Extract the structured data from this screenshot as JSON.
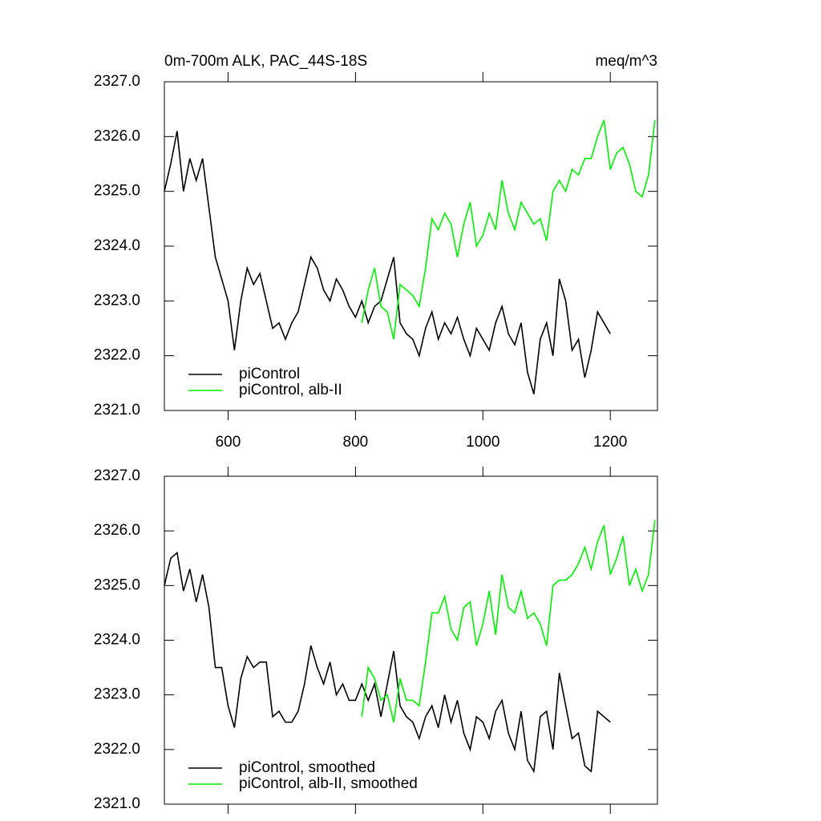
{
  "chart_data": [
    {
      "type": "line",
      "title": "0m-700m ALK, PAC_44S-18S",
      "units": "meq/m^3",
      "xlim": [
        500,
        1274
      ],
      "xticks": [
        600,
        800,
        1000,
        1200
      ],
      "xtick_labels": true,
      "ylim": [
        2321,
        2327
      ],
      "yticks": [
        {
          "value": 2321,
          "label": "2321.0"
        },
        {
          "value": 2322,
          "label": "2322.0"
        },
        {
          "value": 2323,
          "label": "2323.0"
        },
        {
          "value": 2324,
          "label": "2324.0"
        },
        {
          "value": 2325,
          "label": "2325.0"
        },
        {
          "value": 2326,
          "label": "2326.0"
        },
        {
          "value": 2327,
          "label": "2327.0"
        }
      ],
      "legend": "lower left",
      "series": [
        {
          "name": "piControl",
          "color": "#000000",
          "x": [
            500,
            510,
            520,
            530,
            540,
            550,
            560,
            570,
            580,
            590,
            600,
            610,
            620,
            630,
            640,
            650,
            660,
            670,
            680,
            690,
            700,
            710,
            720,
            730,
            740,
            750,
            760,
            770,
            780,
            790,
            800,
            810,
            820,
            830,
            840,
            850,
            860,
            870,
            880,
            890,
            900,
            910,
            920,
            930,
            940,
            950,
            960,
            970,
            980,
            990,
            1000,
            1010,
            1020,
            1030,
            1040,
            1050,
            1060,
            1070,
            1080,
            1090,
            1100,
            1110,
            1120,
            1130,
            1140,
            1150,
            1160,
            1170,
            1180,
            1190,
            1200
          ],
          "values": [
            2325.0,
            2325.5,
            2326.1,
            2325.0,
            2325.6,
            2325.2,
            2325.6,
            2324.7,
            2323.8,
            2323.4,
            2323.0,
            2322.1,
            2323.0,
            2323.6,
            2323.3,
            2323.5,
            2323.0,
            2322.5,
            2322.6,
            2322.3,
            2322.6,
            2322.8,
            2323.3,
            2323.8,
            2323.6,
            2323.2,
            2323.0,
            2323.4,
            2323.2,
            2322.9,
            2322.7,
            2323.0,
            2322.6,
            2322.9,
            2323.0,
            2323.4,
            2323.8,
            2322.6,
            2322.4,
            2322.3,
            2322.0,
            2322.5,
            2322.8,
            2322.3,
            2322.6,
            2322.4,
            2322.7,
            2322.3,
            2322.0,
            2322.5,
            2322.3,
            2322.1,
            2322.6,
            2322.9,
            2322.4,
            2322.2,
            2322.6,
            2321.7,
            2321.3,
            2322.3,
            2322.6,
            2322.0,
            2323.4,
            2323.0,
            2322.1,
            2322.3,
            2321.6,
            2322.1,
            2322.8,
            2322.6,
            2322.4
          ]
        },
        {
          "name": "piControl, alb-II",
          "color": "#00ee00",
          "x": [
            810,
            820,
            830,
            840,
            850,
            860,
            870,
            880,
            890,
            900,
            910,
            920,
            930,
            940,
            950,
            960,
            970,
            980,
            990,
            1000,
            1010,
            1020,
            1030,
            1040,
            1050,
            1060,
            1070,
            1080,
            1090,
            1100,
            1110,
            1120,
            1130,
            1140,
            1150,
            1160,
            1170,
            1180,
            1190,
            1200,
            1210,
            1220,
            1230,
            1240,
            1250,
            1260,
            1270
          ],
          "values": [
            2322.6,
            2323.2,
            2323.6,
            2322.9,
            2322.8,
            2322.3,
            2323.3,
            2323.2,
            2323.1,
            2322.9,
            2323.6,
            2324.5,
            2324.3,
            2324.6,
            2324.4,
            2323.8,
            2324.4,
            2324.8,
            2324.0,
            2324.2,
            2324.6,
            2324.3,
            2325.2,
            2324.6,
            2324.3,
            2324.8,
            2324.6,
            2324.4,
            2324.5,
            2324.1,
            2325.0,
            2325.2,
            2325.0,
            2325.4,
            2325.3,
            2325.6,
            2325.6,
            2326.0,
            2326.3,
            2325.4,
            2325.7,
            2325.8,
            2325.5,
            2325.0,
            2324.9,
            2325.3,
            2326.3
          ]
        }
      ]
    },
    {
      "type": "line",
      "xlim": [
        500,
        1274
      ],
      "xticks": [
        600,
        800,
        1000,
        1200
      ],
      "xtick_labels": false,
      "ylim": [
        2321,
        2327
      ],
      "yticks": [
        {
          "value": 2321,
          "label": "2321.0"
        },
        {
          "value": 2322,
          "label": "2322.0"
        },
        {
          "value": 2323,
          "label": "2323.0"
        },
        {
          "value": 2324,
          "label": "2324.0"
        },
        {
          "value": 2325,
          "label": "2325.0"
        },
        {
          "value": 2326,
          "label": "2326.0"
        },
        {
          "value": 2327,
          "label": "2327.0"
        }
      ],
      "legend": "lower left",
      "series": [
        {
          "name": "piControl, smoothed",
          "color": "#000000",
          "x": [
            500,
            510,
            520,
            530,
            540,
            550,
            560,
            570,
            580,
            590,
            600,
            610,
            620,
            630,
            640,
            650,
            660,
            670,
            680,
            690,
            700,
            710,
            720,
            730,
            740,
            750,
            760,
            770,
            780,
            790,
            800,
            810,
            820,
            830,
            840,
            850,
            860,
            870,
            880,
            890,
            900,
            910,
            920,
            930,
            940,
            950,
            960,
            970,
            980,
            990,
            1000,
            1010,
            1020,
            1030,
            1040,
            1050,
            1060,
            1070,
            1080,
            1090,
            1100,
            1110,
            1120,
            1130,
            1140,
            1150,
            1160,
            1170,
            1180,
            1190,
            1200
          ],
          "values": [
            2325.0,
            2325.5,
            2325.6,
            2324.9,
            2325.3,
            2324.7,
            2325.2,
            2324.6,
            2323.5,
            2323.5,
            2322.8,
            2322.4,
            2323.3,
            2323.7,
            2323.5,
            2323.6,
            2323.6,
            2322.6,
            2322.7,
            2322.5,
            2322.5,
            2322.7,
            2323.2,
            2323.9,
            2323.5,
            2323.2,
            2323.6,
            2323.0,
            2323.2,
            2322.9,
            2322.9,
            2323.2,
            2322.9,
            2323.2,
            2322.6,
            2323.2,
            2323.8,
            2322.8,
            2322.6,
            2322.5,
            2322.2,
            2322.6,
            2322.8,
            2322.4,
            2323.0,
            2322.5,
            2322.9,
            2322.3,
            2322.0,
            2322.6,
            2322.5,
            2322.2,
            2322.7,
            2322.9,
            2322.3,
            2322.0,
            2322.7,
            2321.8,
            2321.6,
            2322.6,
            2322.7,
            2322.0,
            2323.4,
            2322.8,
            2322.2,
            2322.3,
            2321.7,
            2321.6,
            2322.7,
            2322.6,
            2322.5
          ]
        },
        {
          "name": "piControl, alb-II, smoothed",
          "color": "#00ee00",
          "x": [
            810,
            820,
            830,
            840,
            850,
            860,
            870,
            880,
            890,
            900,
            910,
            920,
            930,
            940,
            950,
            960,
            970,
            980,
            990,
            1000,
            1010,
            1020,
            1030,
            1040,
            1050,
            1060,
            1070,
            1080,
            1090,
            1100,
            1110,
            1120,
            1130,
            1140,
            1150,
            1160,
            1170,
            1180,
            1190,
            1200,
            1210,
            1220,
            1230,
            1240,
            1250,
            1260,
            1270
          ],
          "values": [
            2322.6,
            2323.5,
            2323.3,
            2322.9,
            2323.0,
            2322.5,
            2323.3,
            2322.9,
            2322.9,
            2322.8,
            2323.6,
            2324.5,
            2324.5,
            2324.8,
            2324.2,
            2324.0,
            2324.6,
            2324.7,
            2323.9,
            2324.3,
            2324.9,
            2324.1,
            2325.2,
            2324.6,
            2324.5,
            2324.9,
            2324.4,
            2324.5,
            2324.3,
            2323.9,
            2325.0,
            2325.1,
            2325.1,
            2325.2,
            2325.4,
            2325.7,
            2325.3,
            2325.8,
            2326.1,
            2325.2,
            2325.5,
            2325.9,
            2325.0,
            2325.3,
            2324.9,
            2325.2,
            2326.2
          ]
        }
      ]
    }
  ]
}
